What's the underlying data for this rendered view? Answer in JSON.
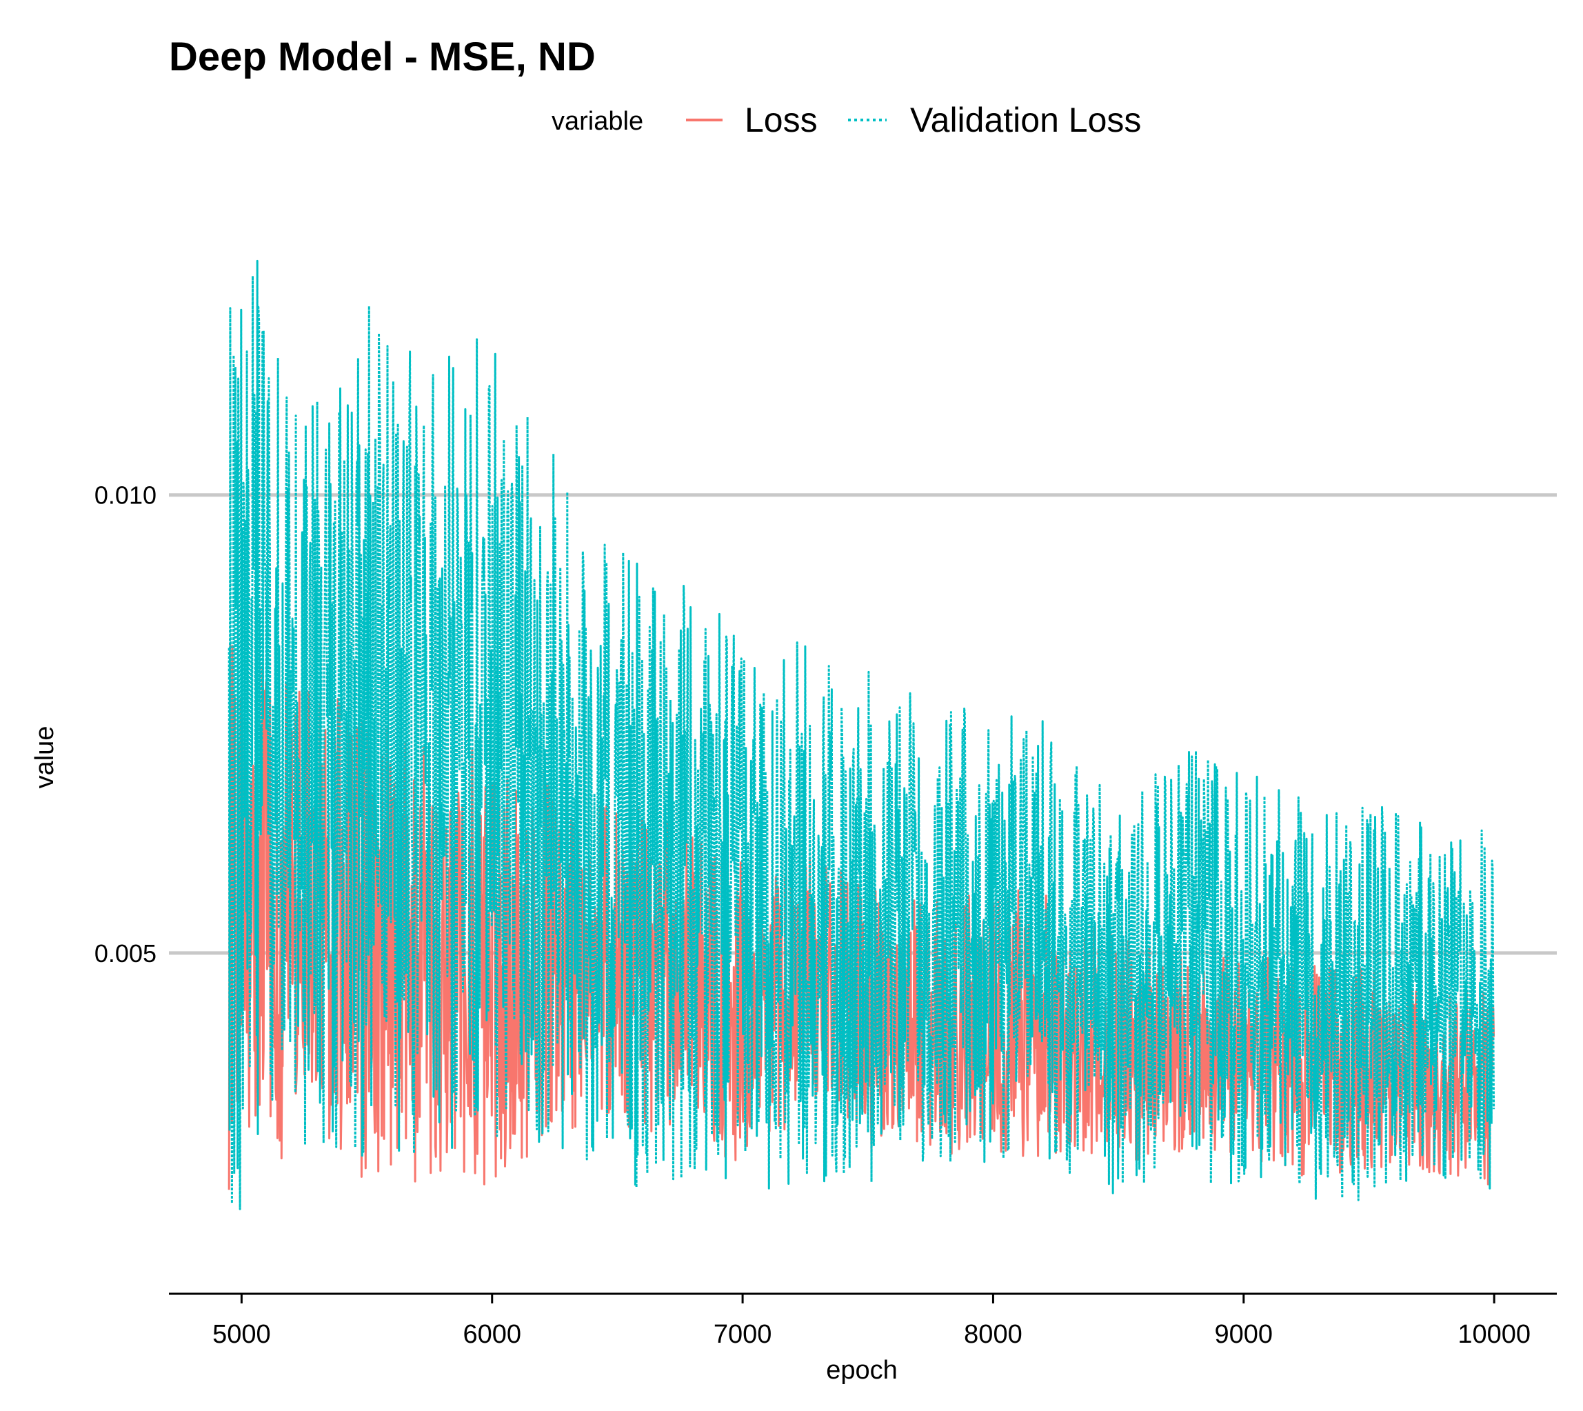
{
  "chart_data": {
    "type": "line",
    "title": "Deep Model - MSE, ND",
    "xlabel": "epoch",
    "ylabel": "value",
    "xlim": [
      4710,
      10250
    ],
    "ylim": [
      0.00128,
      0.01322
    ],
    "xticks": [
      5000,
      6000,
      7000,
      8000,
      9000,
      10000
    ],
    "yticks": [
      0.005,
      0.01
    ],
    "ytick_labels": [
      "0.005",
      "0.010"
    ],
    "xtick_labels": [
      "5000",
      "6000",
      "7000",
      "8000",
      "9000",
      "10000"
    ],
    "grid": "horizontal",
    "legend": {
      "title": "variable",
      "position": "top"
    },
    "series": [
      {
        "name": "Loss",
        "color": "#F8766D",
        "linestyle": "solid",
        "sampling": "x from 4950 to 10000; values listed below are keyframes of the envelope",
        "x": [
          4950,
          5000,
          5400,
          5500,
          5700,
          5950,
          6400,
          6800,
          7000,
          7350,
          7500,
          8000,
          8150,
          8300,
          8500,
          8700,
          9000,
          9200,
          9400,
          9700,
          10000
        ],
        "lower": [
          0.0024,
          0.0028,
          0.0025,
          0.0025,
          0.0024,
          0.0024,
          0.0032,
          0.0028,
          0.0027,
          0.0034,
          0.0028,
          0.0028,
          0.0027,
          0.0028,
          0.0027,
          0.0028,
          0.0028,
          0.0025,
          0.0026,
          0.0026,
          0.0024
        ],
        "upper": [
          0.0085,
          0.0082,
          0.0078,
          0.0076,
          0.0074,
          0.0072,
          0.0068,
          0.0064,
          0.0062,
          0.006,
          0.0058,
          0.0056,
          0.0058,
          0.0054,
          0.0052,
          0.005,
          0.005,
          0.0051,
          0.0049,
          0.0047,
          0.0046
        ]
      },
      {
        "name": "Validation Loss",
        "color": "#00BFC4",
        "linestyle": "dotted",
        "sampling": "x from 4950 to 10000; values listed below are keyframes of the envelope",
        "x": [
          4950,
          4980,
          5050,
          5200,
          5400,
          5550,
          5700,
          5950,
          6150,
          6400,
          6650,
          6850,
          7100,
          7350,
          7600,
          7900,
          8150,
          8300,
          8400,
          8600,
          8800,
          9000,
          9200,
          9400,
          9600,
          9800,
          10000
        ],
        "lower": [
          0.0022,
          0.0015,
          0.0022,
          0.0027,
          0.0028,
          0.0027,
          0.0028,
          0.0029,
          0.0028,
          0.0027,
          0.0023,
          0.0026,
          0.0024,
          0.0025,
          0.0025,
          0.0027,
          0.0027,
          0.0026,
          0.0024,
          0.0023,
          0.0024,
          0.0025,
          0.0024,
          0.0022,
          0.0024,
          0.0024,
          0.0023
        ],
        "upper": [
          0.0125,
          0.0124,
          0.013,
          0.0113,
          0.0115,
          0.0127,
          0.0115,
          0.0122,
          0.011,
          0.0098,
          0.0091,
          0.009,
          0.0086,
          0.0082,
          0.008,
          0.0078,
          0.0076,
          0.0074,
          0.0071,
          0.007,
          0.0073,
          0.0071,
          0.0068,
          0.0066,
          0.0066,
          0.0065,
          0.0063
        ]
      }
    ]
  }
}
